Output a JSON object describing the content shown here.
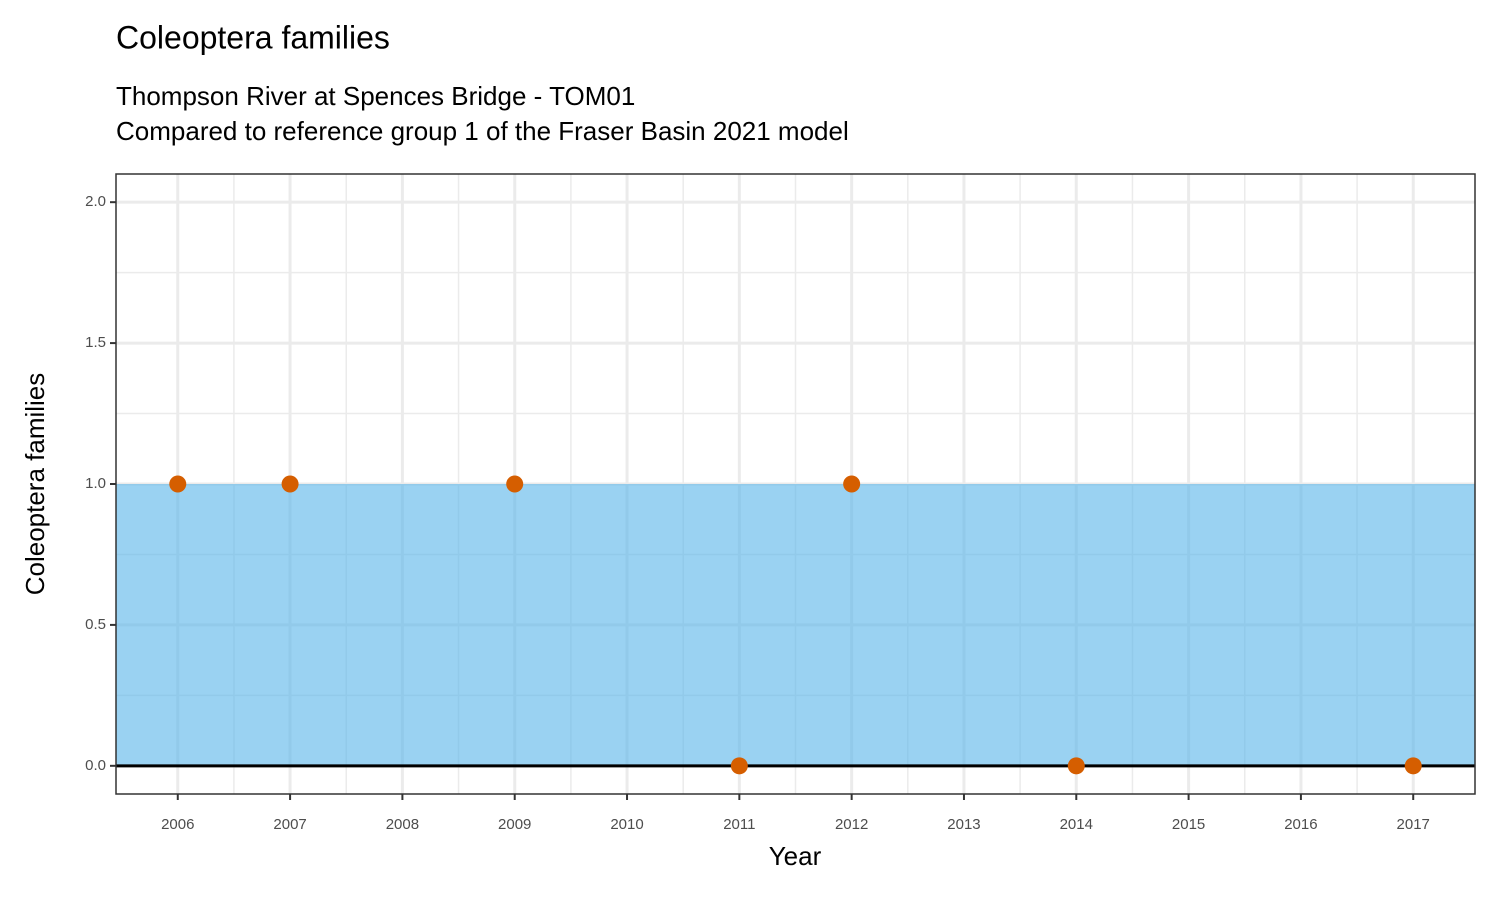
{
  "chart_data": {
    "type": "scatter",
    "title": "Coleoptera families",
    "subtitle": [
      "Thompson River at Spences Bridge - TOM01",
      "Compared to reference group 1 of the Fraser Basin 2021 model"
    ],
    "x_label": "Year",
    "y_label": "Coleoptera families",
    "x": [
      2006,
      2007,
      2009,
      2011,
      2012,
      2014,
      2017
    ],
    "values": [
      1,
      1,
      1,
      0,
      1,
      0,
      0
    ],
    "color": "#d55e00",
    "band": {
      "lower": 0,
      "upper": 1,
      "color": "#56b4e9",
      "opacity": 0.6
    },
    "hline": 0,
    "xlim": [
      2005.45,
      2017.55
    ],
    "xticks": [
      2006,
      2007,
      2008,
      2009,
      2010,
      2011,
      2012,
      2013,
      2014,
      2015,
      2016,
      2017
    ],
    "ylim": [
      -0.1,
      2.1
    ],
    "yticks": [
      {
        "value": 0,
        "label": "0.0"
      },
      {
        "value": 0.5,
        "label": "0.5"
      },
      {
        "value": 1,
        "label": "1.0"
      },
      {
        "value": 1.5,
        "label": "1.5"
      },
      {
        "value": 2,
        "label": "2.0"
      }
    ],
    "grid": true
  }
}
